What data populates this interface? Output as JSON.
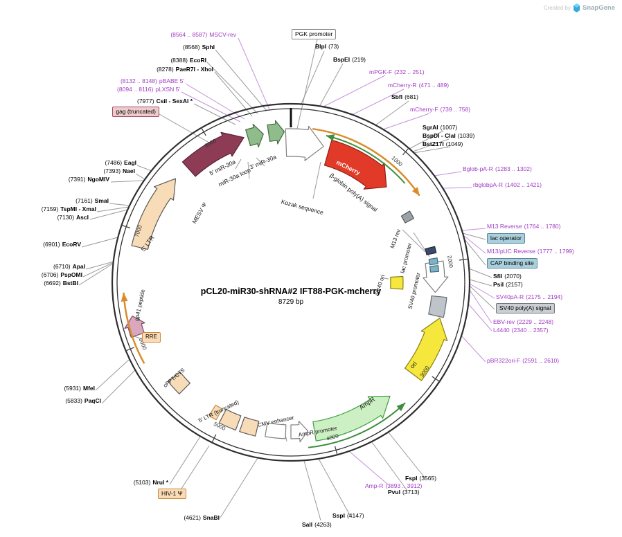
{
  "watermark": {
    "prefix": "Created by",
    "brand": "SnapGene"
  },
  "center": {
    "title": "pCL20-miR30-shRNA#2 IFT88-PGK-mcherry",
    "size": "8729 bp"
  },
  "ticks": [
    "1000",
    "2000",
    "3000",
    "4000",
    "5000",
    "6000",
    "7000",
    "8000"
  ],
  "enzymes": {
    "sphI": {
      "pos": "(8568)",
      "name": "SphI"
    },
    "ecoRI": {
      "pos": "(8388)",
      "name": "EcoRI"
    },
    "paeR7I": {
      "pos": "(8278)",
      "name": "PaeR7I - XhoI"
    },
    "csiI": {
      "pos": "(7977)",
      "name": "CsiI - SexAI *"
    },
    "eagI": {
      "pos": "(7486)",
      "name": "EagI"
    },
    "naeI": {
      "pos": "(7393)",
      "name": "NaeI"
    },
    "ngoMIV": {
      "pos": "(7391)",
      "name": "NgoMIV"
    },
    "smaI": {
      "pos": "(7161)",
      "name": "SmaI"
    },
    "tspMI": {
      "pos": "(7159)",
      "name": "TspMI - XmaI"
    },
    "ascI": {
      "pos": "(7130)",
      "name": "AscI"
    },
    "ecoRV": {
      "pos": "(6901)",
      "name": "EcoRV"
    },
    "apaI": {
      "pos": "(6710)",
      "name": "ApaI"
    },
    "pspOMI": {
      "pos": "(6706)",
      "name": "PspOMI"
    },
    "bstBI": {
      "pos": "(6692)",
      "name": "BstBI"
    },
    "mfeI": {
      "pos": "(5931)",
      "name": "MfeI"
    },
    "paqCI": {
      "pos": "(5833)",
      "name": "PaqCI"
    },
    "nruI": {
      "pos": "(5103)",
      "name": "NruI *"
    },
    "snaBI": {
      "pos": "(4621)",
      "name": "SnaBI"
    },
    "salI": {
      "name": "SalI",
      "pos": "(4263)"
    },
    "sspI": {
      "name": "SspI",
      "pos": "(4147)"
    },
    "pvuI": {
      "name": "PvuI",
      "pos": "(3713)"
    },
    "fspI": {
      "name": "FspI",
      "pos": "(3565)"
    },
    "blpI": {
      "name": "BlpI",
      "pos": "(73)"
    },
    "bspEI": {
      "name": "BspEI",
      "pos": "(219)"
    },
    "sbfI": {
      "name": "SbfI",
      "pos": "(681)"
    },
    "sgrAI": {
      "name": "SgrAI",
      "pos": "(1007)"
    },
    "bspDI": {
      "name": "BspDI - ClaI",
      "pos": "(1039)"
    },
    "bstZ17I": {
      "name": "BstZ17I",
      "pos": "(1049)"
    },
    "sfiI": {
      "name": "SfiI",
      "pos": "(2070)"
    },
    "psiI": {
      "name": "PsiI",
      "pos": "(2157)"
    }
  },
  "primers": {
    "mscvRev": {
      "pos": "(8564 .. 8587)",
      "name": "MSCV-rev"
    },
    "pbabe": {
      "pos": "(8132 .. 8148)",
      "name": "pBABE 5'"
    },
    "plxsn": {
      "pos": "(8094 .. 8116)",
      "name": "pLXSN 5'"
    },
    "mpgkF": {
      "name": "mPGK-F",
      "pos": "(232 .. 251)"
    },
    "mcherryR": {
      "name": "mCherry-R",
      "pos": "(471 .. 489)"
    },
    "mcherryF": {
      "name": "mCherry-F",
      "pos": "(739 .. 758)"
    },
    "bglobR": {
      "name": "Bglob-pA-R",
      "pos": "(1283 .. 1302)"
    },
    "rbglobR": {
      "name": "rbglobpA-R",
      "pos": "(1402 .. 1421)"
    },
    "m13Reverse": {
      "name": "M13 Reverse",
      "pos": "(1764 .. 1780)"
    },
    "m13pucReverse": {
      "name": "M13/pUC Reverse",
      "pos": "(1777 .. 1799)"
    },
    "sv40paR": {
      "name": "SV40pA-R",
      "pos": "(2175 .. 2194)"
    },
    "ebvRev": {
      "name": "EBV-rev",
      "pos": "(2229 .. 2248)"
    },
    "l4440": {
      "name": "L4440",
      "pos": "(2340 .. 2357)"
    },
    "pbr322oriF": {
      "name": "pBR322ori-F",
      "pos": "(2591 .. 2610)"
    },
    "ampR": {
      "name": "Amp-R",
      "pos": "(3893 .. 3912)"
    }
  },
  "boxes": {
    "pgkPromoter": "PGK promoter",
    "gagTruncated": "gag (truncated)",
    "lacOperator": "lac operator",
    "capBindingSite": "CAP binding site",
    "sv40PolyA": "SV40 poly(A) signal",
    "hiv1Psi": "HIV-1 Ψ",
    "rre": "RRE"
  },
  "features": {
    "mir30a5": "5' miR-30a",
    "mir30aLoop": "miR-30a loop",
    "mir30a3": "3' miR-30a",
    "mcherry": "mCherry",
    "bglobinPolyA": "β-globin poly(A) signal",
    "kozak": "Kozak sequence",
    "mesvPsi": "MESV Ψ",
    "ltr5": "5' LTR",
    "m13rev": "M13 rev",
    "lacPromoter": "lac promoter",
    "sv40ori": "SV40 ori",
    "sv40Promoter": "SV40 promoter",
    "gp41": "gp41 peptide",
    "cppt": "cPPT/CTS",
    "ltr5Truncated": "5' LTR (truncated)",
    "cmvEnhancer": "CMV enhancer",
    "ampRPromoter": "AmpR promoter",
    "ampR": "AmpR",
    "ori": "ori"
  }
}
